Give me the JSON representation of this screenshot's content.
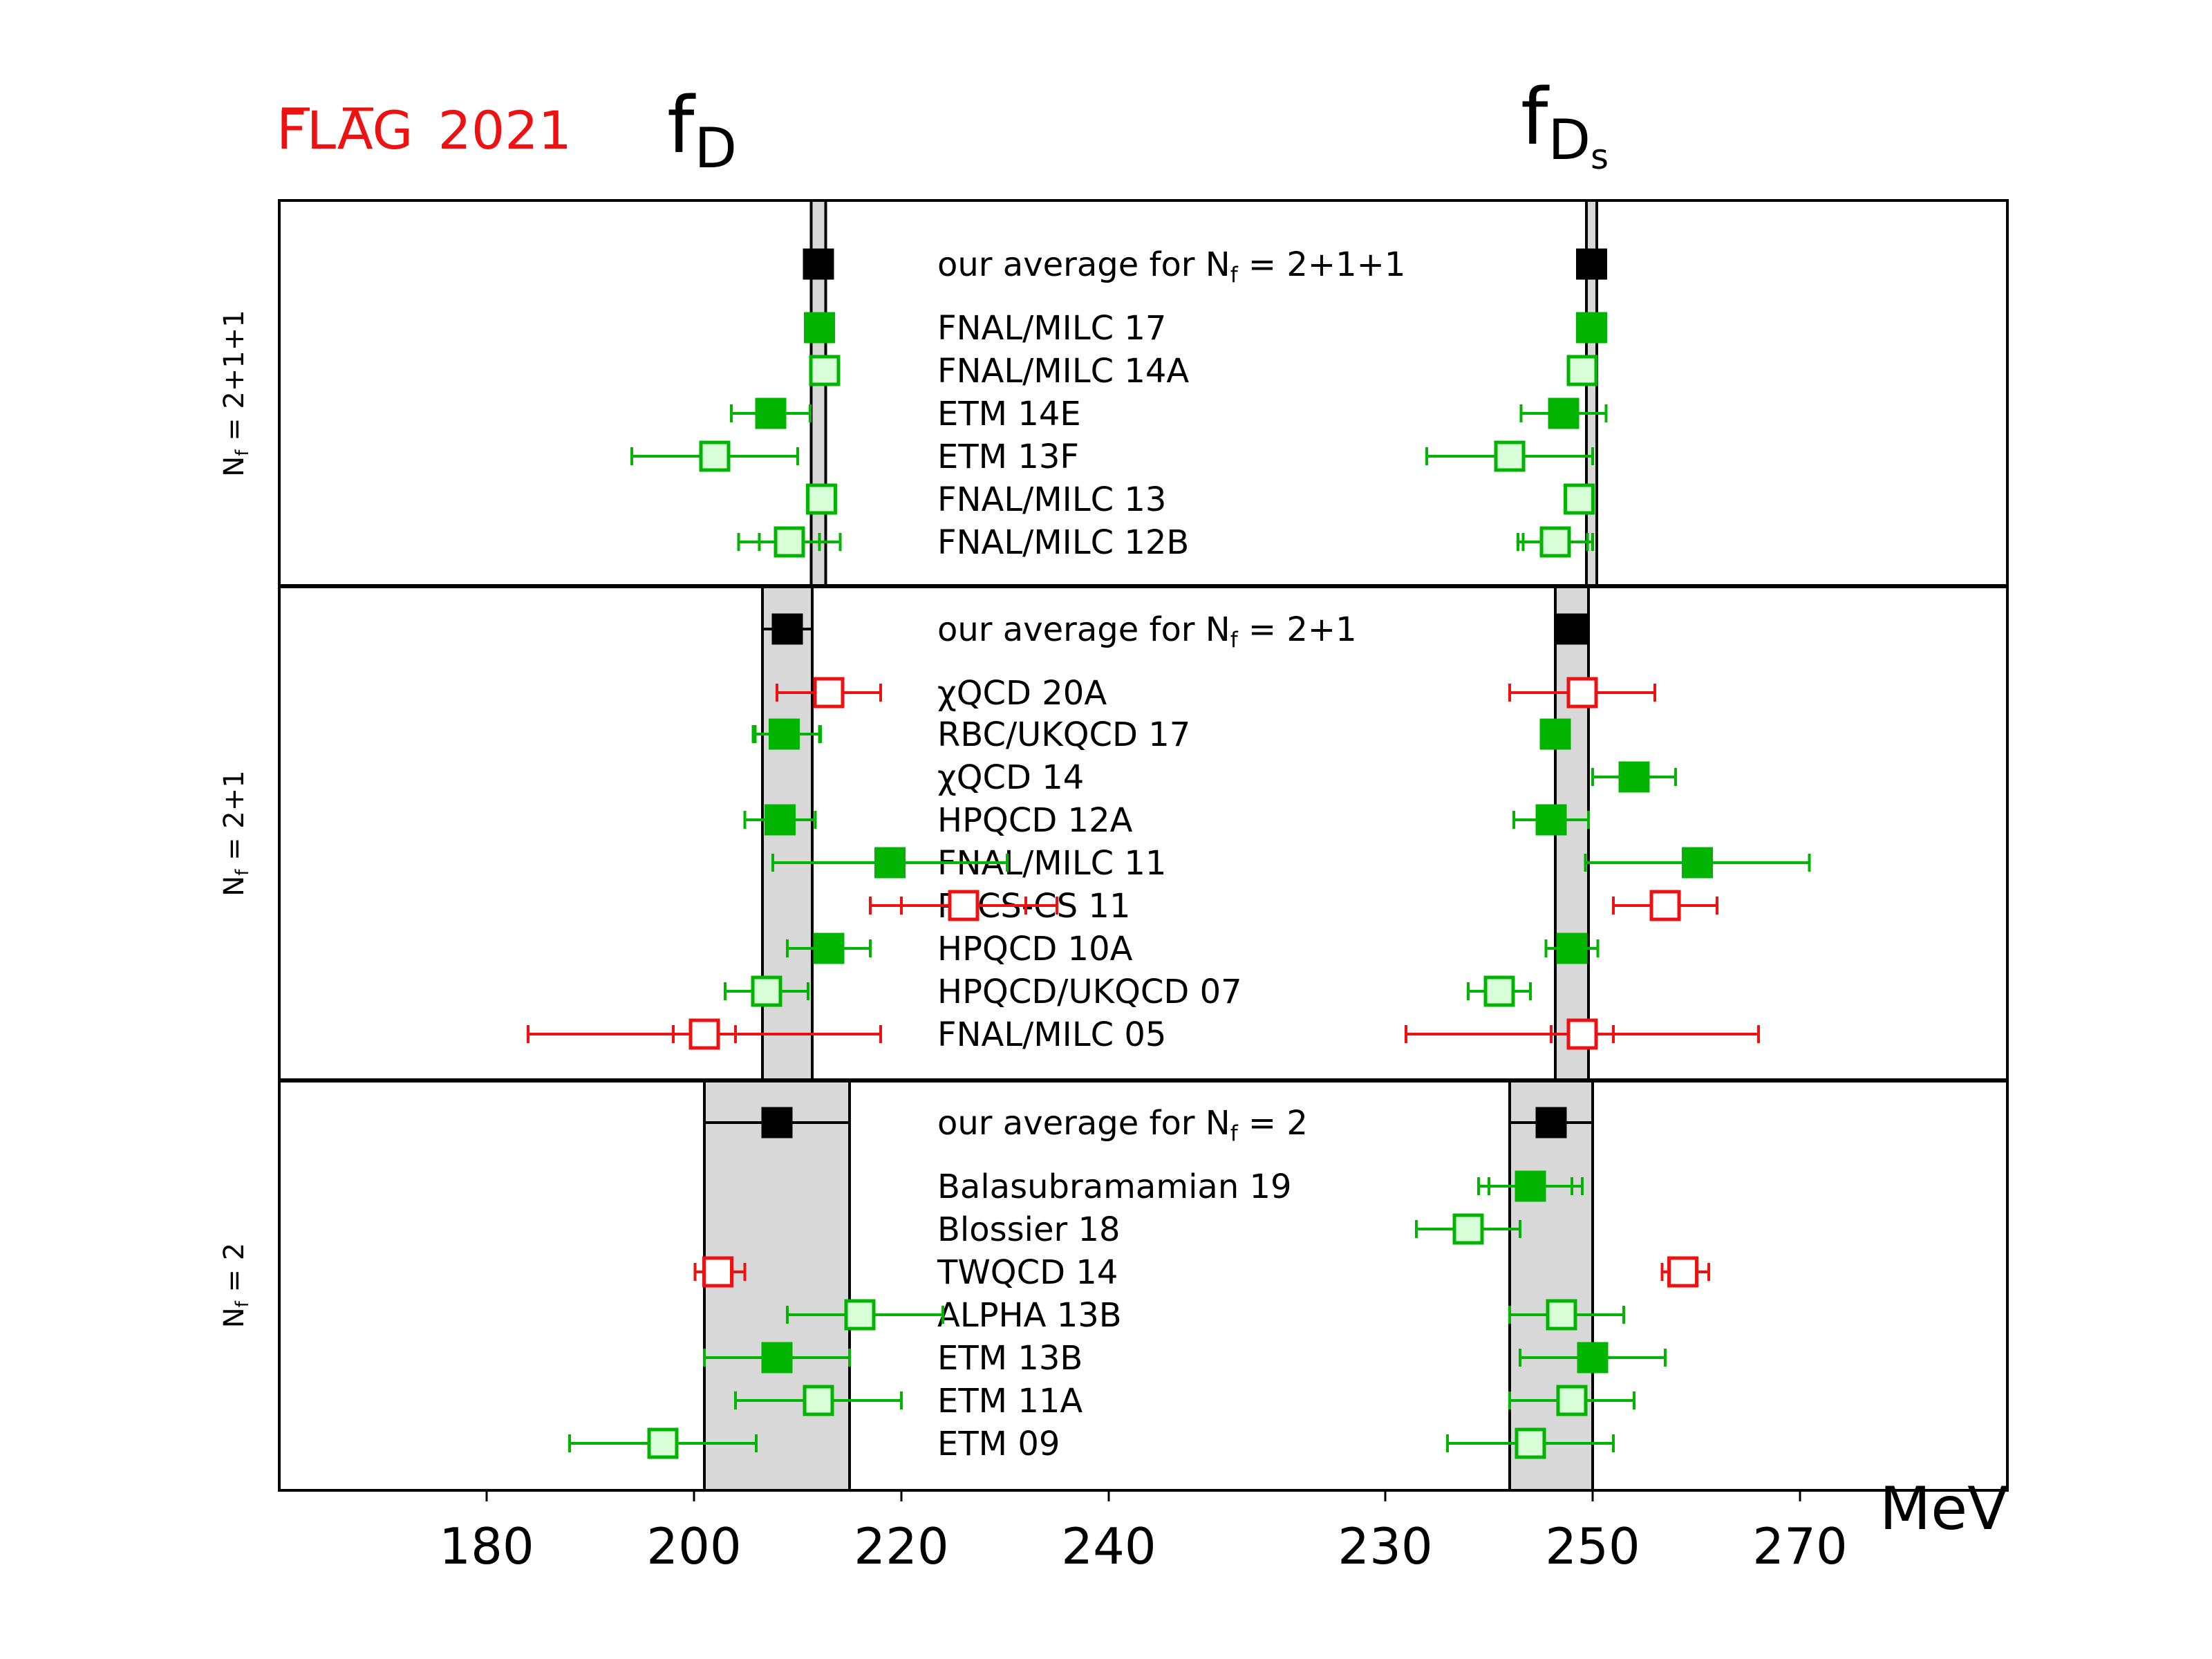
{
  "logo": {
    "flag": "FLAG",
    "year": "2021",
    "color": "#ee1111"
  },
  "headers": {
    "fD_base": "f",
    "fD_sub": "D",
    "fDs_base": "f",
    "fDs_sub": "D",
    "fDs_subsub": "s"
  },
  "unit_label": "MeV",
  "colors": {
    "green": "#00b400",
    "green_light": "#d8ffd8",
    "red": "#ee1111",
    "black": "#000000",
    "band": "#d8d8d8"
  },
  "chart_data": {
    "type": "scatter",
    "axes": [
      {
        "name": "fD",
        "xlim": [
          160,
          260
        ],
        "ticks": [
          180,
          200,
          220,
          240
        ]
      },
      {
        "name": "fDs",
        "xlim": [
          190,
          290
        ],
        "ticks": [
          230,
          250,
          270
        ]
      }
    ],
    "panels": [
      {
        "label": "N_f = 2+1+1",
        "entries": [
          {
            "name": "our average for N_f = 2+1+1",
            "average": true,
            "fD": {
              "v": 212.0,
              "e": [
                0.7,
                0.7
              ]
            },
            "fDs": {
              "v": 249.9,
              "e": [
                0.5,
                0.5
              ]
            }
          },
          {
            "name": "FNAL/MILC 17",
            "style": "green-filled",
            "fD": {
              "v": 212.1,
              "e": [
                0.6,
                0.6
              ]
            },
            "fDs": {
              "v": 249.9,
              "e": [
                0.4,
                0.4
              ]
            }
          },
          {
            "name": "FNAL/MILC 14A",
            "style": "green-open",
            "fD": {
              "v": 212.6,
              "e": [
                0.4,
                0.4
              ]
            },
            "fDs": {
              "v": 249.0,
              "e": [
                0.3,
                0.3
              ]
            }
          },
          {
            "name": "ETM 14E",
            "style": "green-filled",
            "fD": {
              "v": 207.4,
              "e": [
                3.8,
                3.8
              ],
              "e2": [
                3.8,
                3.8
              ]
            },
            "fDs": {
              "v": 247.2,
              "e": [
                4.1,
                4.1
              ],
              "e2": [
                4.1,
                4.1
              ]
            }
          },
          {
            "name": "ETM 13F",
            "style": "green-open",
            "fD": {
              "v": 202.0,
              "e": [
                8.0,
                8.0
              ]
            },
            "fDs": {
              "v": 242.0,
              "e": [
                8.0,
                8.0
              ]
            }
          },
          {
            "name": "FNAL/MILC 13",
            "style": "green-open",
            "fD": {
              "v": 212.3,
              "e": [
                0.6,
                0.6
              ]
            },
            "fDs": {
              "v": 248.7,
              "e": [
                0.4,
                0.4
              ]
            }
          },
          {
            "name": "FNAL/MILC 12B",
            "style": "green-open",
            "fD": {
              "v": 209.2,
              "e": [
                2.9,
                2.9
              ],
              "e2": [
                4.9,
                4.9
              ]
            },
            "fDs": {
              "v": 246.4,
              "e": [
                3.1,
                3.1
              ],
              "e2": [
                3.6,
                3.6
              ]
            }
          }
        ]
      },
      {
        "label": "N_f = 2+1",
        "entries": [
          {
            "name": "our average for N_f = 2+1",
            "average": true,
            "fD": {
              "v": 209.0,
              "e": [
                2.4,
                2.4
              ]
            },
            "fDs": {
              "v": 248.0,
              "e": [
                1.6,
                1.6
              ]
            }
          },
          {
            "name": "χQCD 20A",
            "style": "red-open",
            "fD": {
              "v": 213.0,
              "e": [
                5.0,
                5.0
              ]
            },
            "fDs": {
              "v": 249.0,
              "e": [
                7.0,
                7.0
              ]
            }
          },
          {
            "name": "RBC/UKQCD 17",
            "style": "green-filled",
            "fD": {
              "v": 208.7,
              "e": [
                2.8,
                3.4
              ],
              "e2": [
                3.0,
                3.5
              ]
            },
            "fDs": {
              "v": 246.4,
              "e": [
                1.3,
                1.3
              ]
            }
          },
          {
            "name": "χQCD 14",
            "style": "green-filled",
            "fD": null,
            "fDs": {
              "v": 254.0,
              "e": [
                4.0,
                4.0
              ],
              "e2": [
                4.0,
                4.0
              ]
            }
          },
          {
            "name": "HPQCD 12A",
            "style": "green-filled",
            "fD": {
              "v": 208.3,
              "e": [
                3.4,
                3.4
              ]
            },
            "fDs": {
              "v": 246.0,
              "e": [
                3.6,
                3.6
              ]
            }
          },
          {
            "name": "FNAL/MILC 11",
            "style": "green-filled",
            "fD": {
              "v": 218.9,
              "e": [
                11.3,
                11.3
              ]
            },
            "fDs": {
              "v": 260.1,
              "e": [
                10.8,
                10.8
              ]
            }
          },
          {
            "name": "PACS-CS 11",
            "style": "red-open",
            "fD": {
              "v": 226.0,
              "e": [
                6.0,
                6.0
              ],
              "e2": [
                9.0,
                9.0
              ]
            },
            "fDs": {
              "v": 257.0,
              "e": [
                5.0,
                5.0
              ]
            }
          },
          {
            "name": "HPQCD 10A",
            "style": "green-filled",
            "fD": {
              "v": 213.0,
              "e": [
                4.0,
                4.0
              ]
            },
            "fDs": {
              "v": 248.0,
              "e": [
                2.5,
                2.5
              ]
            }
          },
          {
            "name": "HPQCD/UKQCD 07",
            "style": "green-open",
            "fD": {
              "v": 207.0,
              "e": [
                4.0,
                4.0
              ]
            },
            "fDs": {
              "v": 241.0,
              "e": [
                3.0,
                3.0
              ]
            }
          },
          {
            "name": "FNAL/MILC 05",
            "style": "red-open",
            "fD": {
              "v": 201.0,
              "e": [
                3.0,
                3.0
              ],
              "e2": [
                17.0,
                17.0
              ]
            },
            "fDs": {
              "v": 249.0,
              "e": [
                3.0,
                3.0
              ],
              "e2": [
                17.0,
                17.0
              ]
            }
          }
        ]
      },
      {
        "label": "N_f = 2",
        "entries": [
          {
            "name": "our average for N_f = 2",
            "average": true,
            "fD": {
              "v": 208.0,
              "e": [
                7.0,
                7.0
              ]
            },
            "fDs": {
              "v": 246.0,
              "e": [
                4.0,
                4.0
              ]
            }
          },
          {
            "name": "Balasubramamian 19",
            "style": "green-filled",
            "fD": null,
            "fDs": {
              "v": 244.0,
              "e": [
                4.0,
                4.0
              ],
              "e2": [
                5.0,
                5.0
              ]
            }
          },
          {
            "name": "Blossier 18",
            "style": "green-open",
            "fD": null,
            "fDs": {
              "v": 238.0,
              "e": [
                5.0,
                5.0
              ],
              "e2": [
                5.0,
                5.0
              ]
            }
          },
          {
            "name": "TWQCD 14",
            "style": "red-open",
            "fD": {
              "v": 202.3,
              "e": [
                2.2,
                2.6
              ]
            },
            "fDs": {
              "v": 258.7,
              "e": [
                2.0,
                2.5
              ]
            }
          },
          {
            "name": "ALPHA 13B",
            "style": "green-open",
            "fD": {
              "v": 216.0,
              "e": [
                7.0,
                8.0
              ]
            },
            "fDs": {
              "v": 247.0,
              "e": [
                5.0,
                6.0
              ]
            }
          },
          {
            "name": "ETM 13B",
            "style": "green-filled",
            "fD": {
              "v": 208.0,
              "e": [
                7.0,
                7.0
              ]
            },
            "fDs": {
              "v": 250.0,
              "e": [
                7.0,
                7.0
              ]
            }
          },
          {
            "name": "ETM 11A",
            "style": "green-open",
            "fD": {
              "v": 212.0,
              "e": [
                8.0,
                8.0
              ]
            },
            "fDs": {
              "v": 248.0,
              "e": [
                6.0,
                6.0
              ]
            }
          },
          {
            "name": "ETM 09",
            "style": "green-open",
            "fD": {
              "v": 197.0,
              "e": [
                9.0,
                9.0
              ]
            },
            "fDs": {
              "v": 244.0,
              "e": [
                8.0,
                8.0
              ]
            }
          }
        ]
      }
    ],
    "bands": [
      {
        "panel": 0,
        "fD": [
          211.3,
          212.7
        ],
        "fDs": [
          249.4,
          250.4
        ]
      },
      {
        "panel": 1,
        "fD": [
          206.6,
          211.4
        ],
        "fDs": [
          246.4,
          249.6
        ]
      },
      {
        "panel": 2,
        "fD": [
          201.0,
          215.0
        ],
        "fDs": [
          242.0,
          250.0
        ]
      }
    ]
  }
}
